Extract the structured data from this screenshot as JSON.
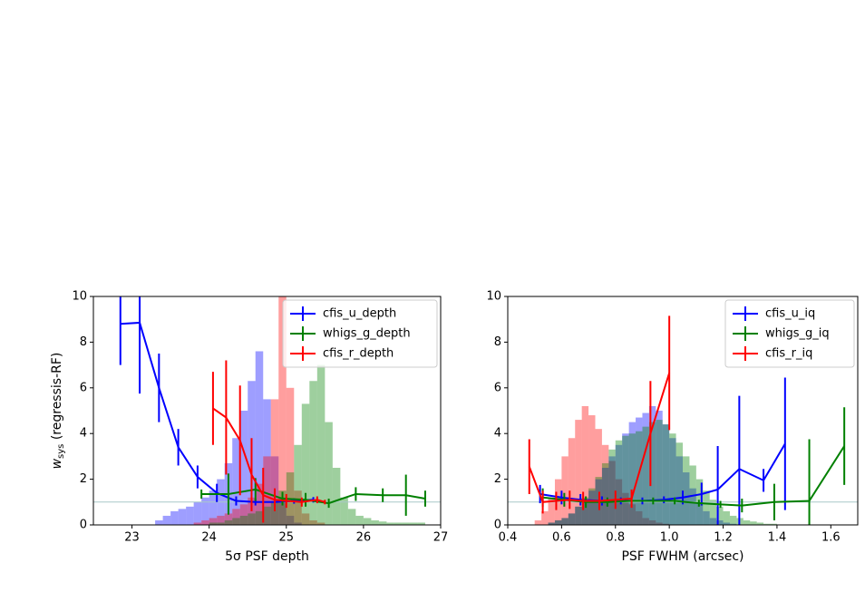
{
  "chart_data": [
    {
      "type": "line",
      "xlabel": "5σ PSF depth",
      "ylabel": {
        "main": "w",
        "sub": "sys",
        "rest": " (regressis-RF)"
      },
      "xlim": [
        22.5,
        27
      ],
      "xticks": [
        23,
        24,
        25,
        26,
        27
      ],
      "ylim": [
        0,
        10
      ],
      "yticks": [
        0,
        2,
        4,
        6,
        8,
        10
      ],
      "hline": 1,
      "legend": "upper right",
      "histograms": [
        {
          "color": "#0000ff",
          "bins": [
            23.3,
            23.4,
            23.5,
            23.6,
            23.7,
            23.8,
            23.9,
            24.0,
            24.1,
            24.2,
            24.3,
            24.4,
            24.5,
            24.6,
            24.7,
            24.8,
            24.9,
            25.0,
            25.1,
            25.2
          ],
          "counts": [
            0.2,
            0.4,
            0.6,
            0.7,
            0.8,
            1.0,
            1.2,
            1.5,
            2.0,
            2.7,
            3.8,
            5.0,
            6.3,
            7.6,
            5.5,
            3.0,
            1.2,
            0.4,
            0.1
          ]
        },
        {
          "color": "#ff0000",
          "bins": [
            23.8,
            23.9,
            24.0,
            24.1,
            24.2,
            24.3,
            24.4,
            24.5,
            24.6,
            24.7,
            24.8,
            24.9,
            25.0,
            25.1,
            25.2,
            25.3,
            25.4,
            25.5
          ],
          "counts": [
            0.1,
            0.2,
            0.3,
            0.4,
            0.5,
            0.7,
            0.9,
            1.2,
            1.8,
            3.0,
            5.5,
            10,
            6,
            1.5,
            0.5,
            0.2,
            0.1
          ]
        },
        {
          "color": "#008000",
          "bins": [
            24.0,
            24.1,
            24.2,
            24.3,
            24.4,
            24.5,
            24.6,
            24.7,
            24.8,
            24.9,
            25.0,
            25.1,
            25.2,
            25.3,
            25.4,
            25.5,
            25.6,
            25.7,
            25.8,
            25.9,
            26.0,
            26.1,
            26.2,
            26.3,
            26.4,
            26.5,
            26.6,
            26.7,
            26.8
          ],
          "counts": [
            0.1,
            0.1,
            0.2,
            0.3,
            0.4,
            0.5,
            0.6,
            0.8,
            1.0,
            1.5,
            2.3,
            3.5,
            5.3,
            6.3,
            7.0,
            4.5,
            2.5,
            1.2,
            0.7,
            0.4,
            0.3,
            0.2,
            0.15,
            0.1,
            0.1,
            0.1,
            0.1,
            0.1
          ]
        }
      ],
      "series": [
        {
          "name": "cfis_u_depth",
          "color": "#0000ff",
          "x": [
            22.85,
            23.1,
            23.35,
            23.6,
            23.85,
            24.1,
            24.35,
            24.6,
            24.85,
            25.1,
            25.35
          ],
          "values": [
            8.8,
            8.85,
            6.0,
            3.4,
            2.1,
            1.4,
            1.05,
            1.0,
            1.0,
            1.05,
            1.1
          ],
          "errors": [
            1.8,
            3.1,
            1.5,
            0.8,
            0.5,
            0.4,
            0.2,
            0.15,
            0.12,
            0.12,
            0.12
          ]
        },
        {
          "name": "whigs_g_depth",
          "color": "#008000",
          "x": [
            23.9,
            24.25,
            24.6,
            24.95,
            25.25,
            25.55,
            25.9,
            26.25,
            26.55,
            26.8
          ],
          "values": [
            1.35,
            1.35,
            1.55,
            1.15,
            1.1,
            0.95,
            1.35,
            1.3,
            1.3,
            1.15
          ],
          "errors": [
            0.2,
            0.9,
            0.5,
            0.3,
            0.3,
            0.2,
            0.3,
            0.3,
            0.9,
            0.35
          ]
        },
        {
          "name": "cfis_r_depth",
          "color": "#ff0000",
          "x": [
            24.05,
            24.22,
            24.4,
            24.55,
            24.7,
            24.85,
            25.0,
            25.2,
            25.4,
            25.5
          ],
          "values": [
            5.1,
            4.7,
            3.7,
            2.2,
            1.3,
            1.1,
            1.05,
            1.0,
            1.1,
            1.0
          ],
          "errors": [
            1.6,
            2.5,
            2.4,
            1.6,
            1.2,
            0.5,
            0.3,
            0.2,
            0.15,
            0.1
          ]
        }
      ]
    },
    {
      "type": "line",
      "xlabel": "PSF FWHM (arcsec)",
      "xlim": [
        0.4,
        1.7
      ],
      "xticks": [
        0.4,
        0.6,
        0.8,
        {
          "value": 1,
          "label": "1.0"
        },
        1.2,
        1.4,
        1.6
      ],
      "ylim": [
        0,
        10
      ],
      "yticks": [
        0,
        2,
        4,
        6,
        8,
        10
      ],
      "hline": 1,
      "legend": "upper right",
      "histograms": [
        {
          "color": "#ff0000",
          "bins": [
            0.5,
            0.525,
            0.55,
            0.575,
            0.6,
            0.625,
            0.65,
            0.675,
            0.7,
            0.725,
            0.75,
            0.775,
            0.8,
            0.825,
            0.85,
            0.875,
            0.9,
            0.925,
            0.95,
            0.975,
            1.0
          ],
          "counts": [
            0.2,
            0.6,
            1.2,
            2.0,
            3.0,
            3.8,
            4.6,
            5.2,
            4.8,
            4.2,
            3.5,
            2.8,
            2.0,
            1.4,
            0.9,
            0.6,
            0.3,
            0.2,
            0.1,
            0.05
          ]
        },
        {
          "color": "#0000ff",
          "bins": [
            0.55,
            0.575,
            0.6,
            0.625,
            0.65,
            0.675,
            0.7,
            0.725,
            0.75,
            0.775,
            0.8,
            0.825,
            0.85,
            0.875,
            0.9,
            0.925,
            0.95,
            0.975,
            1.0,
            1.025,
            1.05,
            1.075,
            1.1,
            1.125,
            1.15,
            1.175,
            1.2,
            1.225,
            1.25
          ],
          "counts": [
            0.1,
            0.2,
            0.3,
            0.5,
            0.8,
            1.1,
            1.5,
            2.0,
            2.5,
            3.0,
            3.5,
            4.0,
            4.5,
            4.7,
            4.9,
            5.2,
            5.0,
            4.4,
            3.8,
            3.0,
            2.3,
            1.6,
            1.0,
            0.6,
            0.3,
            0.2,
            0.1,
            0.05
          ]
        },
        {
          "color": "#008000",
          "bins": [
            0.55,
            0.575,
            0.6,
            0.625,
            0.65,
            0.675,
            0.7,
            0.725,
            0.75,
            0.775,
            0.8,
            0.825,
            0.85,
            0.875,
            0.9,
            0.925,
            0.95,
            0.975,
            1.0,
            1.025,
            1.05,
            1.075,
            1.1,
            1.125,
            1.15,
            1.175,
            1.2,
            1.225,
            1.25,
            1.275,
            1.3,
            1.325,
            1.35,
            1.375,
            1.4
          ],
          "counts": [
            0.1,
            0.2,
            0.3,
            0.5,
            0.8,
            1.2,
            1.6,
            2.1,
            2.7,
            3.3,
            3.7,
            3.9,
            4.0,
            4.1,
            4.3,
            4.5,
            4.6,
            4.4,
            4.0,
            3.6,
            3.0,
            2.6,
            2.0,
            1.5,
            1.1,
            0.8,
            0.6,
            0.4,
            0.3,
            0.2,
            0.15,
            0.1,
            0.05,
            0.05
          ]
        }
      ],
      "series": [
        {
          "name": "cfis_u_iq",
          "color": "#0000ff",
          "x": [
            0.52,
            0.6,
            0.67,
            0.75,
            0.82,
            0.9,
            0.98,
            1.05,
            1.12,
            1.18,
            1.26,
            1.35,
            1.43
          ],
          "values": [
            1.35,
            1.2,
            1.1,
            1.05,
            1.05,
            1.05,
            1.1,
            1.2,
            1.35,
            1.55,
            2.45,
            1.95,
            3.55
          ],
          "errors": [
            0.4,
            0.3,
            0.25,
            0.2,
            0.15,
            0.15,
            0.15,
            0.3,
            0.5,
            1.9,
            3.2,
            0.5,
            2.9
          ]
        },
        {
          "name": "whigs_g_iq",
          "color": "#008000",
          "x": [
            0.53,
            0.61,
            0.69,
            0.77,
            0.86,
            0.94,
            1.02,
            1.11,
            1.19,
            1.27,
            1.39,
            1.52,
            1.65
          ],
          "values": [
            1.2,
            1.1,
            1.0,
            1.0,
            1.05,
            1.05,
            1.05,
            0.95,
            0.9,
            0.85,
            1.0,
            1.05,
            3.45
          ],
          "errors": [
            0.4,
            0.3,
            0.25,
            0.2,
            0.2,
            0.15,
            0.15,
            0.15,
            0.15,
            0.3,
            0.8,
            2.7,
            1.7
          ]
        },
        {
          "name": "cfis_r_iq",
          "color": "#ff0000",
          "x": [
            0.48,
            0.53,
            0.58,
            0.63,
            0.68,
            0.74,
            0.8,
            0.86,
            0.93,
            1.0
          ],
          "values": [
            2.55,
            1.0,
            1.05,
            1.1,
            1.05,
            1.05,
            1.1,
            1.15,
            4.0,
            6.65
          ],
          "errors": [
            1.2,
            0.5,
            0.4,
            0.4,
            0.4,
            0.4,
            0.4,
            0.4,
            2.3,
            2.5
          ]
        }
      ]
    }
  ]
}
